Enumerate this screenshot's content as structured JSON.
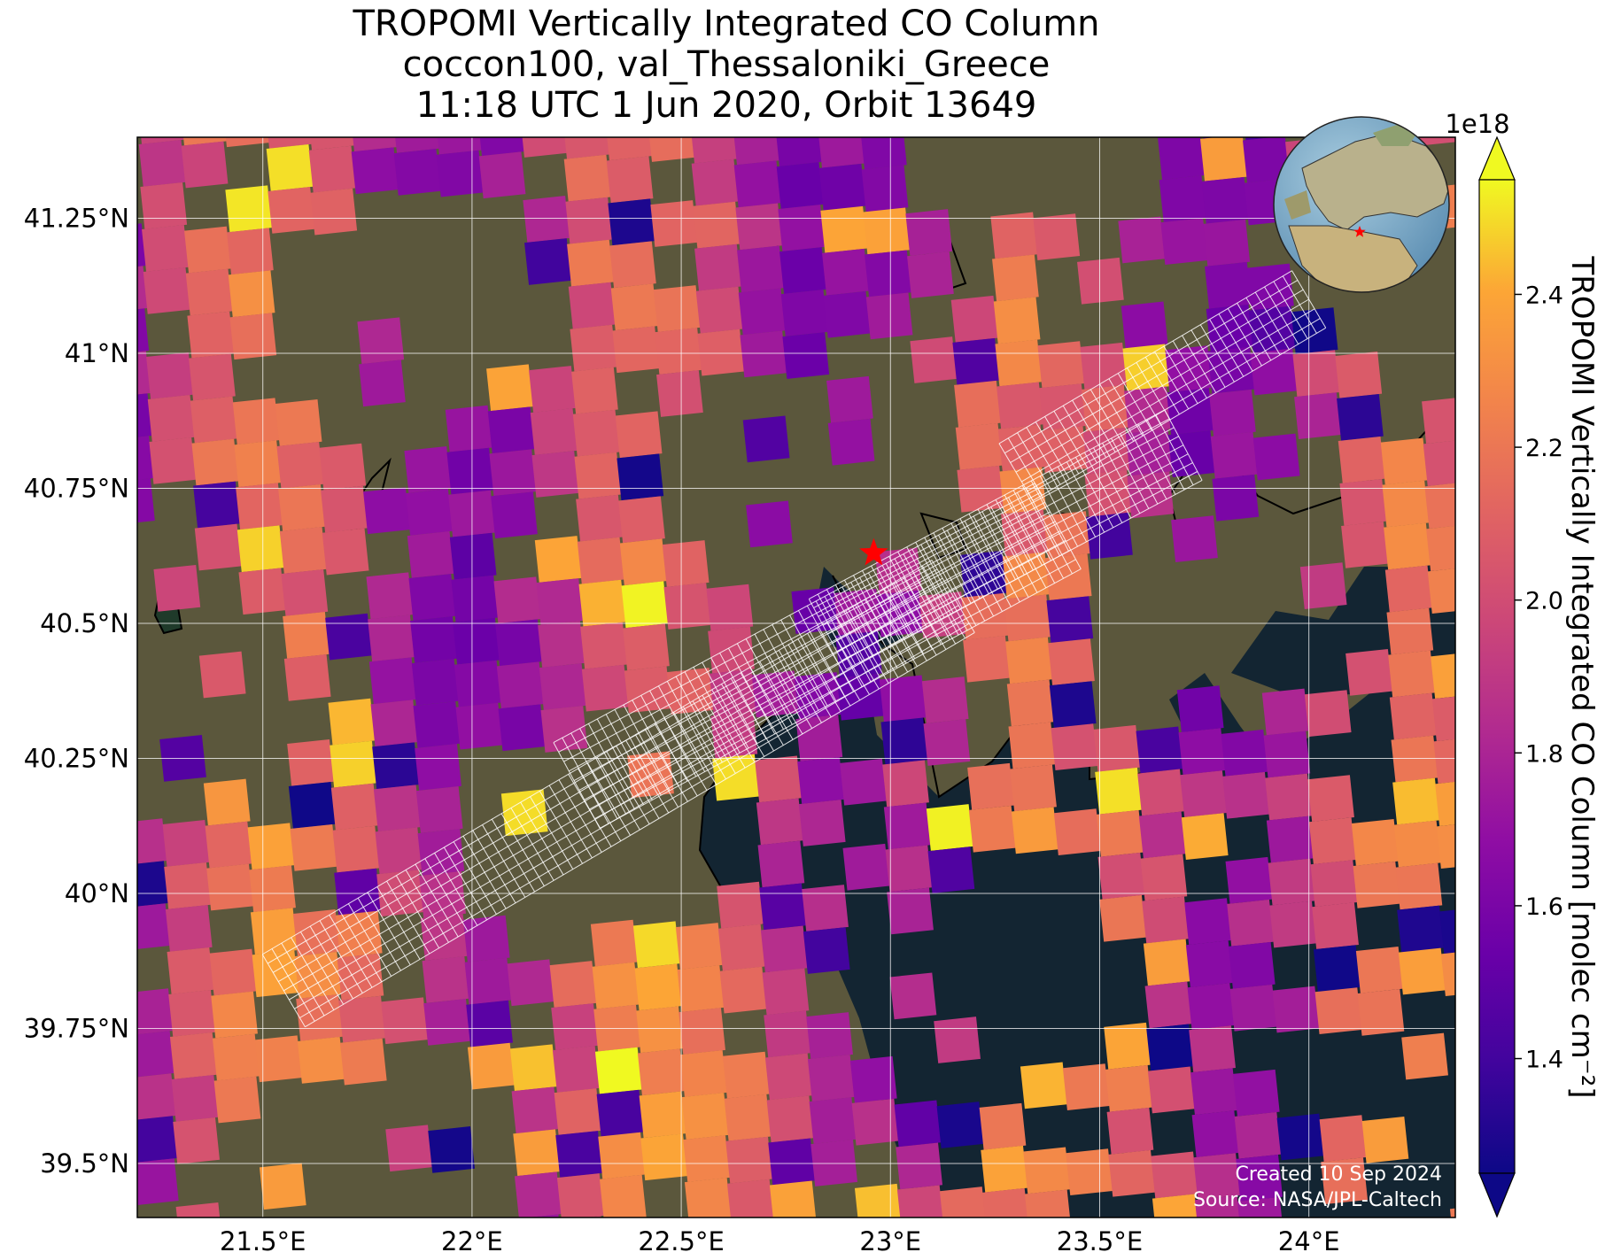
{
  "title": {
    "line1": "TROPOMI Vertically Integrated CO Column",
    "line2": "coccon100, val_Thessaloniki_Greece",
    "line3": "11:18 UTC 1 Jun 2020, Orbit 13649"
  },
  "credits": {
    "created": "Created 10 Sep 2024",
    "source": "Source: NASA/JPL-Caltech"
  },
  "colorbar": {
    "label": "TROPOMI Vertically Integrated CO Column [molec cm⁻²]",
    "offset": "1e18",
    "colormap": "plasma",
    "vmin": 1.25,
    "vmax": 2.55,
    "extend": "both",
    "ticks": [
      {
        "value": 1.4,
        "label": "1.4"
      },
      {
        "value": 1.6,
        "label": "1.6"
      },
      {
        "value": 1.8,
        "label": "1.8"
      },
      {
        "value": 2.0,
        "label": "2.0"
      },
      {
        "value": 2.2,
        "label": "2.2"
      },
      {
        "value": 2.4,
        "label": "2.4"
      }
    ]
  },
  "map": {
    "lon_range": [
      21.2,
      24.35
    ],
    "lat_range": [
      39.4,
      41.4
    ],
    "lon_ticks": [
      {
        "value": 21.5,
        "label": "21.5°E"
      },
      {
        "value": 22.0,
        "label": "22°E"
      },
      {
        "value": 22.5,
        "label": "22.5°E"
      },
      {
        "value": 23.0,
        "label": "23°E"
      },
      {
        "value": 23.5,
        "label": "23.5°E"
      },
      {
        "value": 24.0,
        "label": "24°E"
      }
    ],
    "lat_ticks": [
      {
        "value": 41.25,
        "label": "41.25°N"
      },
      {
        "value": 41.0,
        "label": "41°N"
      },
      {
        "value": 40.75,
        "label": "40.75°N"
      },
      {
        "value": 40.5,
        "label": "40.5°N"
      },
      {
        "value": 40.25,
        "label": "40.25°N"
      },
      {
        "value": 40.0,
        "label": "40°N"
      },
      {
        "value": 39.75,
        "label": "39.75°N"
      },
      {
        "value": 39.5,
        "label": "39.5°N"
      }
    ],
    "station": {
      "lon": 22.96,
      "lat": 40.63,
      "color": "#ff0000"
    },
    "grid": true,
    "inset_globe": "top-right",
    "colors": {
      "land": "#6b5f45",
      "water": "#132532",
      "gridline": "#ffffff",
      "footprint": "#ffffff"
    }
  }
}
